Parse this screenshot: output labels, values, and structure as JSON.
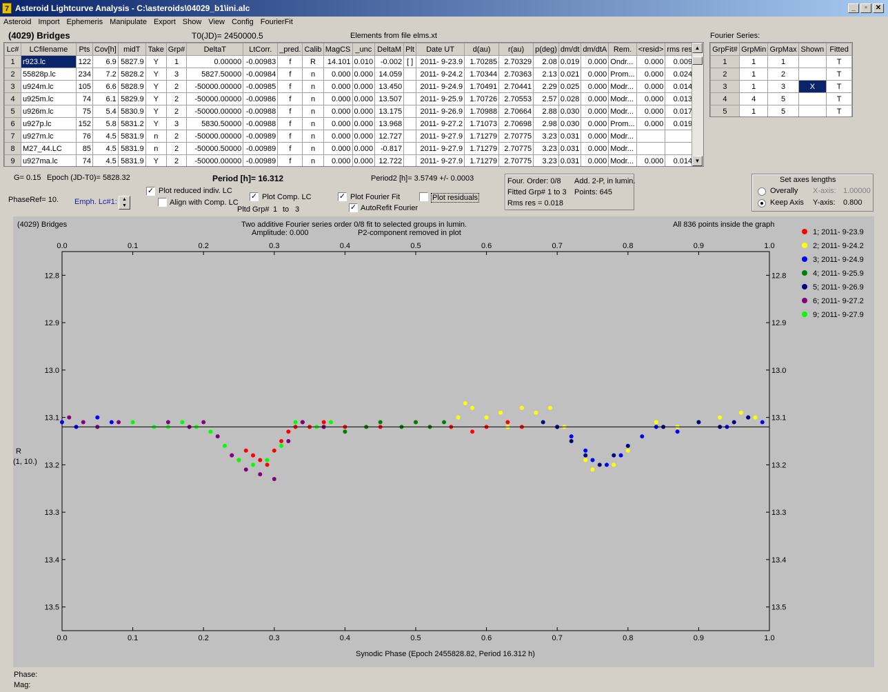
{
  "window": {
    "title": "Asteroid Lightcurve Analysis - C:\\asteroids\\04029_b1\\ini.alc",
    "icon_label": "7"
  },
  "menu": [
    "Asteroid",
    "Import",
    "Ephemeris",
    "Manipulate",
    "Export",
    "Show",
    "View",
    "Config",
    "FourierFit"
  ],
  "header": {
    "asteroid_name": "(4029) Bridges",
    "t0": "T0(JD)= 2450000.5",
    "elements": "Elements from file elms.xt",
    "fourier_series_label": "Fourier Series:"
  },
  "lc_table": {
    "columns": [
      "Lc#",
      "LCfilename",
      "Pts",
      "Cov[h]",
      "midT",
      "Take",
      "Grp#",
      "DeltaT",
      "LtCorr.",
      "_pred.",
      "Calib",
      "MagCS",
      "_unc",
      "DeltaM",
      "Plt",
      "Date UT",
      "d(au)",
      "r(au)",
      "p(deg)",
      "dm/dt",
      "dm/dtA",
      "Rem.",
      "<resid>",
      "rms res"
    ],
    "rows": [
      [
        "1",
        "r923.lc",
        "122",
        "6.9",
        "5827.9",
        "Y",
        "1",
        "0.00000",
        "-0.00983",
        "f",
        "R",
        "14.101",
        "0.010",
        "-0.002",
        "[ ]",
        "2011- 9-23.9",
        "1.70285",
        "2.70329",
        "2.08",
        "0.019",
        "0.000",
        "Ondr...",
        "0.000",
        "0.009"
      ],
      [
        "2",
        "55828p.lc",
        "234",
        "7.2",
        "5828.2",
        "Y",
        "3",
        "5827.50000",
        "-0.00984",
        "f",
        "n",
        "0.000",
        "0.000",
        "14.059",
        "",
        "2011- 9-24.2",
        "1.70344",
        "2.70363",
        "2.13",
        "0.021",
        "0.000",
        "Prom...",
        "0.000",
        "0.024"
      ],
      [
        "3",
        "u924m.lc",
        "105",
        "6.6",
        "5828.9",
        "Y",
        "2",
        "-50000.00000",
        "-0.00985",
        "f",
        "n",
        "0.000",
        "0.000",
        "13.450",
        "",
        "2011- 9-24.9",
        "1.70491",
        "2.70441",
        "2.29",
        "0.025",
        "0.000",
        "Modr...",
        "0.000",
        "0.014"
      ],
      [
        "4",
        "u925m.lc",
        "74",
        "6.1",
        "5829.9",
        "Y",
        "2",
        "-50000.00000",
        "-0.00986",
        "f",
        "n",
        "0.000",
        "0.000",
        "13.507",
        "",
        "2011- 9-25.9",
        "1.70726",
        "2.70553",
        "2.57",
        "0.028",
        "0.000",
        "Modr...",
        "0.000",
        "0.013"
      ],
      [
        "5",
        "u926m.lc",
        "75",
        "5.4",
        "5830.9",
        "Y",
        "2",
        "-50000.00000",
        "-0.00988",
        "f",
        "n",
        "0.000",
        "0.000",
        "13.175",
        "",
        "2011- 9-26.9",
        "1.70988",
        "2.70664",
        "2.88",
        "0.030",
        "0.000",
        "Modr...",
        "0.000",
        "0.017"
      ],
      [
        "6",
        "u927p.lc",
        "152",
        "5.8",
        "5831.2",
        "Y",
        "3",
        "5830.50000",
        "-0.00988",
        "f",
        "n",
        "0.000",
        "0.000",
        "13.968",
        "",
        "2011- 9-27.2",
        "1.71073",
        "2.70698",
        "2.98",
        "0.030",
        "0.000",
        "Prom...",
        "0.000",
        "0.019"
      ],
      [
        "7",
        "u927m.lc",
        "76",
        "4.5",
        "5831.9",
        "n",
        "2",
        "-50000.00000",
        "-0.00989",
        "f",
        "n",
        "0.000",
        "0.000",
        "12.727",
        "",
        "2011- 9-27.9",
        "1.71279",
        "2.70775",
        "3.23",
        "0.031",
        "0.000",
        "Modr...",
        "",
        ""
      ],
      [
        "8",
        "M27_44.LC",
        "85",
        "4.5",
        "5831.9",
        "n",
        "2",
        "-50000.50000",
        "-0.00989",
        "f",
        "n",
        "0.000",
        "0.000",
        "-0.817",
        "",
        "2011- 9-27.9",
        "1.71279",
        "2.70775",
        "3.23",
        "0.031",
        "0.000",
        "Modr...",
        "",
        ""
      ],
      [
        "9",
        "u927ma.lc",
        "74",
        "4.5",
        "5831.9",
        "Y",
        "2",
        "-50000.00000",
        "-0.00989",
        "f",
        "n",
        "0.000",
        "0.000",
        "12.722",
        "",
        "2011- 9-27.9",
        "1.71279",
        "2.70775",
        "3.23",
        "0.031",
        "0.000",
        "Modr...",
        "0.000",
        "0.014"
      ]
    ]
  },
  "fourier_table": {
    "columns": [
      "GrpFit#",
      "GrpMin",
      "GrpMax",
      "Shown",
      "Fitted"
    ],
    "rows": [
      [
        "1",
        "1",
        "1",
        "",
        "T"
      ],
      [
        "2",
        "1",
        "2",
        "",
        "T"
      ],
      [
        "3",
        "1",
        "3",
        "X",
        "T"
      ],
      [
        "4",
        "4",
        "5",
        "",
        "T"
      ],
      [
        "5",
        "1",
        "5",
        "",
        "T"
      ]
    ]
  },
  "controls": {
    "g": "G= 0.15",
    "epoch": "Epoch (JD-T0)= 5828.32",
    "phaseref": "PhaseRef= 10.",
    "emph": "Emph. Lc#1:",
    "period": "Period [h]= 16.312",
    "period2": "Period2 [h]= 3.5749 +/- 0.0003",
    "plot_reduced": "Plot reduced indiv. LC",
    "align": "Align with Comp. LC",
    "plot_comp": "Plot Comp. LC",
    "pltd_grp": "Pltd Grp#",
    "grp_from": "1",
    "to": "to",
    "grp_to": "3",
    "plot_fourier": "Plot Fourier Fit",
    "autorefit": "AutoRefit Fourier",
    "plot_residuals": "Plot residuals",
    "four_order": "Four. Order:  0/8",
    "add2p": "Add. 2-P, in lumin.",
    "fitted_grp": "Fitted Grp# 1 to 3",
    "points": "Points: 645",
    "rms": "Rms res     = 0.018",
    "axes_title": "Set axes lengths",
    "overally": "Overally",
    "keep_axis": "Keep Axis",
    "xaxis_lbl": "X-axis:",
    "xaxis_val": "1.00000",
    "yaxis_lbl": "Y-axis:",
    "yaxis_val": "0.800"
  },
  "plot": {
    "name": "(4029) Bridges",
    "title1": "Two additive Fourier series order 0/8 fit to selected groups in lumin.",
    "title2_left": "Amplitude: 0.000",
    "title2_right": "P2-component removed in plot",
    "points_note": "All 836 points inside the graph",
    "ylabel1": "R",
    "ylabel2": "(1, 10.)",
    "xlabel": "Synodic Phase (Epoch 2455828.82, Period 16.312 h)"
  },
  "footer": {
    "phase": "Phase:",
    "mag": "Mag:"
  },
  "chart_data": {
    "type": "scatter",
    "xlim": [
      0.0,
      1.0
    ],
    "ylim": [
      12.75,
      13.55
    ],
    "y_inverted": true,
    "x_ticks": [
      "0.0",
      "0.1",
      "0.2",
      "0.3",
      "0.4",
      "0.5",
      "0.6",
      "0.7",
      "0.8",
      "0.9",
      "1.0"
    ],
    "y_ticks": [
      "12.8",
      "12.9",
      "13.0",
      "13.1",
      "13.2",
      "13.3",
      "13.4",
      "13.5"
    ],
    "fit_line": {
      "y": 13.12
    },
    "legend_position": "right",
    "series": [
      {
        "name": "1; 2011- 9-23.9",
        "color": "#ff0000",
        "points": [
          [
            0.24,
            13.18
          ],
          [
            0.25,
            13.19
          ],
          [
            0.26,
            13.17
          ],
          [
            0.27,
            13.18
          ],
          [
            0.28,
            13.19
          ],
          [
            0.29,
            13.2
          ],
          [
            0.3,
            13.17
          ],
          [
            0.31,
            13.15
          ],
          [
            0.32,
            13.13
          ],
          [
            0.33,
            13.12
          ],
          [
            0.34,
            13.11
          ],
          [
            0.35,
            13.12
          ],
          [
            0.37,
            13.11
          ],
          [
            0.4,
            13.12
          ],
          [
            0.45,
            13.12
          ],
          [
            0.5,
            13.11
          ],
          [
            0.55,
            13.12
          ],
          [
            0.58,
            13.13
          ],
          [
            0.6,
            13.12
          ],
          [
            0.63,
            13.11
          ],
          [
            0.65,
            13.12
          ]
        ]
      },
      {
        "name": "2; 2011- 9-24.2",
        "color": "#ffff00",
        "points": [
          [
            0.56,
            13.1
          ],
          [
            0.57,
            13.07
          ],
          [
            0.58,
            13.08
          ],
          [
            0.6,
            13.1
          ],
          [
            0.62,
            13.09
          ],
          [
            0.63,
            13.12
          ],
          [
            0.65,
            13.08
          ],
          [
            0.67,
            13.09
          ],
          [
            0.69,
            13.08
          ],
          [
            0.71,
            13.12
          ],
          [
            0.72,
            13.15
          ],
          [
            0.74,
            13.19
          ],
          [
            0.75,
            13.21
          ],
          [
            0.76,
            13.2
          ],
          [
            0.78,
            13.2
          ],
          [
            0.8,
            13.17
          ],
          [
            0.82,
            13.14
          ],
          [
            0.84,
            13.11
          ],
          [
            0.87,
            13.12
          ],
          [
            0.9,
            13.11
          ],
          [
            0.93,
            13.1
          ],
          [
            0.96,
            13.09
          ],
          [
            0.98,
            13.1
          ]
        ]
      },
      {
        "name": "3; 2011- 9-24.9",
        "color": "#0000ff",
        "points": [
          [
            0.0,
            13.11
          ],
          [
            0.02,
            13.12
          ],
          [
            0.05,
            13.1
          ],
          [
            0.07,
            13.11
          ],
          [
            0.7,
            13.12
          ],
          [
            0.72,
            13.14
          ],
          [
            0.74,
            13.17
          ],
          [
            0.75,
            13.19
          ],
          [
            0.77,
            13.2
          ],
          [
            0.79,
            13.18
          ],
          [
            0.82,
            13.14
          ],
          [
            0.84,
            13.12
          ],
          [
            0.87,
            13.13
          ],
          [
            0.9,
            13.11
          ],
          [
            0.94,
            13.12
          ],
          [
            0.97,
            13.1
          ],
          [
            0.99,
            13.11
          ]
        ]
      },
      {
        "name": "4; 2011- 9-25.9",
        "color": "#008000",
        "points": [
          [
            0.34,
            13.11
          ],
          [
            0.37,
            13.12
          ],
          [
            0.4,
            13.13
          ],
          [
            0.43,
            13.12
          ],
          [
            0.45,
            13.11
          ],
          [
            0.48,
            13.12
          ],
          [
            0.5,
            13.11
          ],
          [
            0.52,
            13.12
          ],
          [
            0.54,
            13.11
          ]
        ]
      },
      {
        "name": "5; 2011- 9-26.9",
        "color": "#000080",
        "points": [
          [
            0.68,
            13.11
          ],
          [
            0.7,
            13.12
          ],
          [
            0.72,
            13.15
          ],
          [
            0.74,
            13.18
          ],
          [
            0.76,
            13.2
          ],
          [
            0.78,
            13.18
          ],
          [
            0.8,
            13.16
          ],
          [
            0.85,
            13.12
          ],
          [
            0.9,
            13.11
          ],
          [
            0.93,
            13.12
          ],
          [
            0.95,
            13.11
          ],
          [
            0.97,
            13.1
          ]
        ]
      },
      {
        "name": "6; 2011- 9-27.2",
        "color": "#800080",
        "points": [
          [
            0.01,
            13.1
          ],
          [
            0.03,
            13.11
          ],
          [
            0.05,
            13.12
          ],
          [
            0.08,
            13.11
          ],
          [
            0.15,
            13.11
          ],
          [
            0.18,
            13.12
          ],
          [
            0.2,
            13.11
          ],
          [
            0.22,
            13.14
          ],
          [
            0.24,
            13.18
          ],
          [
            0.26,
            13.21
          ],
          [
            0.28,
            13.22
          ],
          [
            0.3,
            13.23
          ],
          [
            0.32,
            13.15
          ],
          [
            0.34,
            13.11
          ],
          [
            0.37,
            13.12
          ]
        ]
      },
      {
        "name": "9; 2011- 9-27.9",
        "color": "#00ff00",
        "points": [
          [
            0.1,
            13.11
          ],
          [
            0.13,
            13.12
          ],
          [
            0.15,
            13.12
          ],
          [
            0.17,
            13.11
          ],
          [
            0.19,
            13.12
          ],
          [
            0.21,
            13.13
          ],
          [
            0.23,
            13.16
          ],
          [
            0.25,
            13.19
          ],
          [
            0.27,
            13.2
          ],
          [
            0.29,
            13.19
          ],
          [
            0.31,
            13.16
          ],
          [
            0.33,
            13.11
          ],
          [
            0.36,
            13.12
          ],
          [
            0.38,
            13.11
          ]
        ]
      }
    ]
  }
}
